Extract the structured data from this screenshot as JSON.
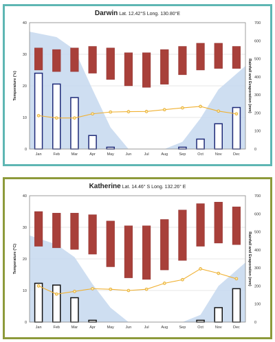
{
  "colors": {
    "temp_bar": "#a8403a",
    "rain_bar_edge": "#1e2a78",
    "rain_bar_edge_katherine": "#111111",
    "evap_line": "#f0b030",
    "evap_marker": "#e0a020",
    "humidity_area": "#c5d8ee",
    "grid": "#cfcfcf",
    "border_darwin": "#5eb6b3",
    "border_katherine": "#8d9a3a"
  },
  "chart_data": [
    {
      "type": "bar",
      "title": "Darwin",
      "subtitle": "Lat. 12.42°S Long. 130.80°E",
      "ylabel": "Temperature (°c)",
      "y2label": "Rainfall and Evaporation (mm)",
      "categories": [
        "Jan",
        "Feb",
        "Mar",
        "Apr",
        "May",
        "Jun",
        "Jul",
        "Aug",
        "Sep",
        "Oct",
        "Nov",
        "Dec"
      ],
      "ylim": [
        0,
        40
      ],
      "y2lim": [
        0,
        700
      ],
      "y_ticks": [
        "0",
        "10",
        "20",
        "30",
        "40"
      ],
      "y2_ticks": [
        "0",
        "100",
        "200",
        "300",
        "400",
        "500",
        "600",
        "700"
      ],
      "grid": true,
      "temperature_range": {
        "min": [
          25,
          24.5,
          24.5,
          24,
          22,
          20,
          19.5,
          20.5,
          23.5,
          25,
          25.5,
          25.5
        ],
        "max": [
          32,
          31.5,
          32,
          32.5,
          32,
          30.5,
          30.5,
          31.5,
          32.5,
          33.5,
          33.5,
          32.5
        ]
      },
      "rainfall": [
        420,
        360,
        285,
        75,
        10,
        0,
        0,
        0,
        10,
        55,
        140,
        230
      ],
      "evaporation": [
        185,
        172,
        172,
        195,
        205,
        207,
        208,
        218,
        228,
        236,
        210,
        195
      ],
      "shaded_area": [
        650,
        620,
        550,
        330,
        120,
        0,
        0,
        0,
        40,
        170,
        330,
        460
      ]
    },
    {
      "type": "bar",
      "title": "Katherine",
      "subtitle": "Lat. 14.46° S Long. 132.26° E",
      "ylabel": "Temperature (°C)",
      "y2label": "Rainfall and Evaporation (mm)",
      "categories": [
        "Jan",
        "Feb",
        "Mar",
        "Apr",
        "May",
        "Jun",
        "Jul",
        "Aug",
        "Sep",
        "Oct",
        "Nov",
        "Dec"
      ],
      "ylim": [
        0,
        40
      ],
      "y2lim": [
        0,
        700
      ],
      "y_ticks": [
        "0",
        "10",
        "20",
        "30",
        "40"
      ],
      "y2_ticks": [
        "0",
        "100",
        "200",
        "300",
        "400",
        "500",
        "600",
        "700"
      ],
      "grid": true,
      "temperature_range": {
        "min": [
          24,
          23.5,
          23,
          21.5,
          17.5,
          14,
          13.5,
          16.5,
          19.5,
          24,
          25,
          24.5
        ],
        "max": [
          35,
          34.5,
          34.5,
          34,
          32,
          30.5,
          30.5,
          32.5,
          35.5,
          37.5,
          38,
          36.5
        ]
      },
      "rainfall": [
        215,
        205,
        135,
        10,
        0,
        0,
        0,
        0,
        0,
        10,
        80,
        185
      ],
      "evaporation": [
        200,
        155,
        170,
        185,
        182,
        175,
        182,
        215,
        235,
        295,
        270,
        240
      ],
      "shaded_area": [
        480,
        430,
        360,
        210,
        80,
        0,
        0,
        0,
        0,
        40,
        200,
        330
      ]
    }
  ]
}
